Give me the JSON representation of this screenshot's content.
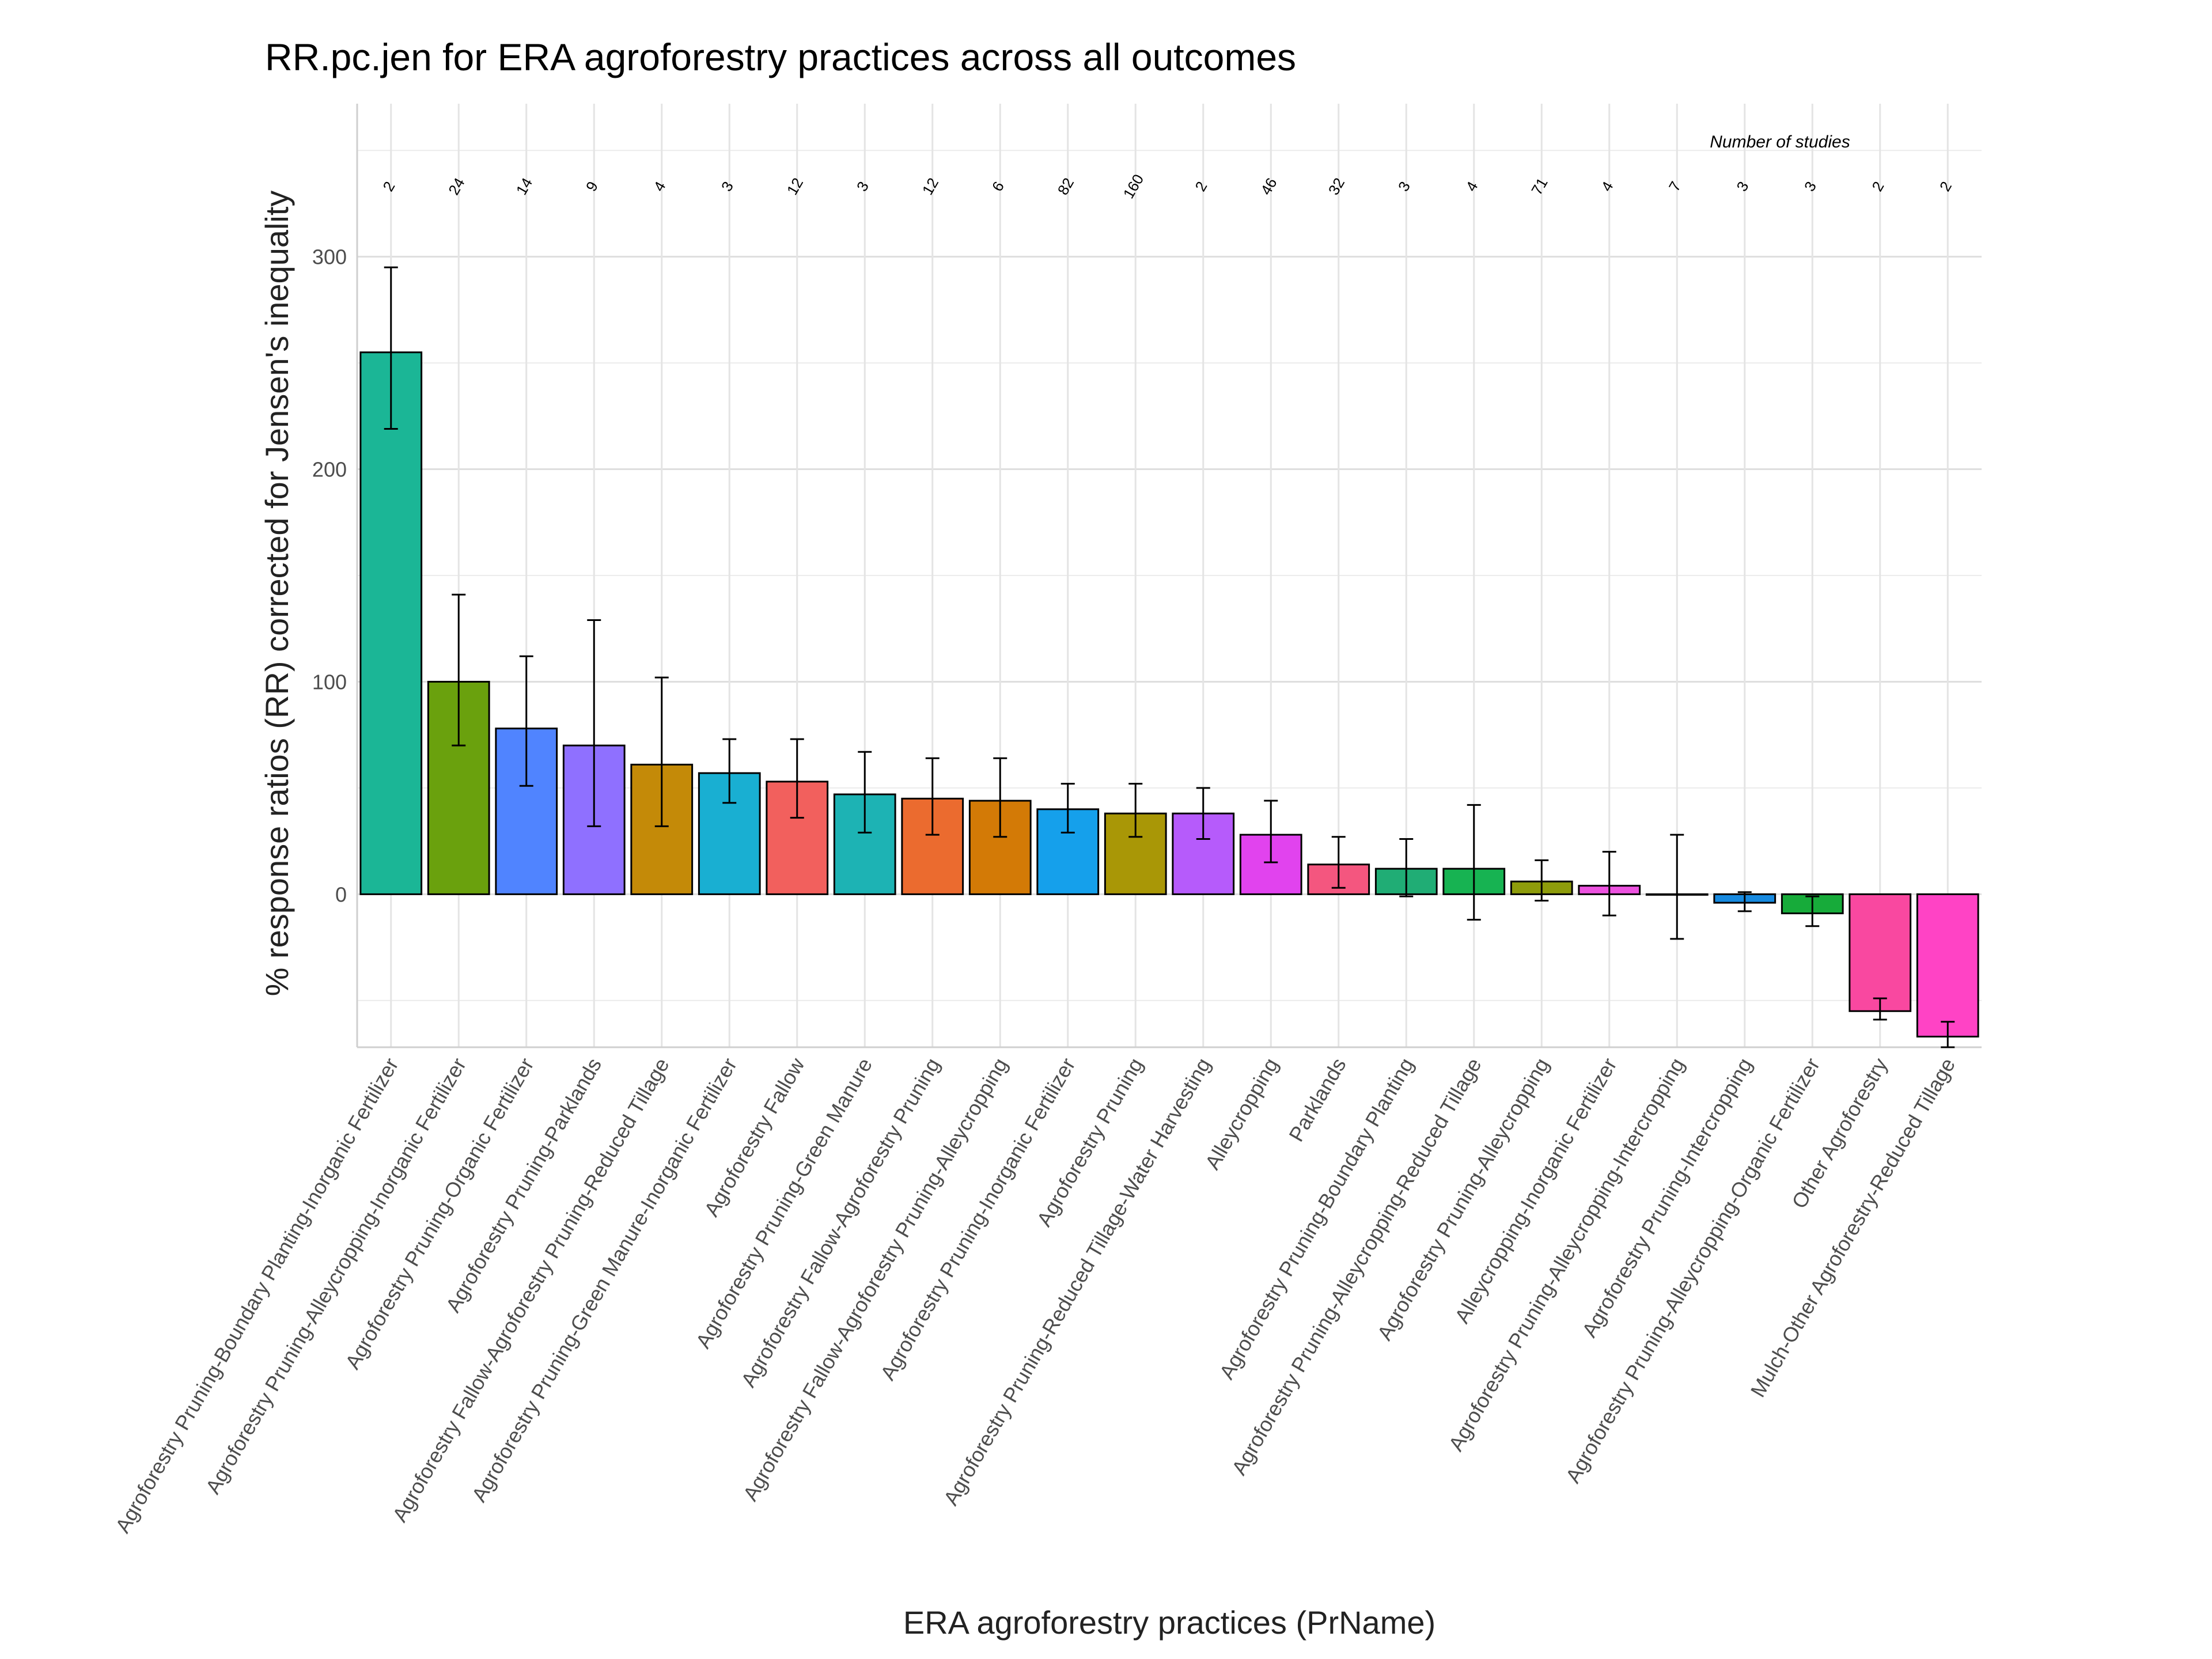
{
  "chart_data": {
    "type": "bar",
    "title": "RR.pc.jen for ERA agroforestry practices across all outcomes",
    "xlabel": "ERA agroforestry practices (PrName)",
    "ylabel": "% response ratios (RR) corrected for Jensen's inequality",
    "ylim": [
      -72,
      372
    ],
    "yticks": [
      0,
      100,
      200,
      300
    ],
    "grid": true,
    "legend": "none",
    "annotation_title": "Number of studies",
    "categories": [
      "Agroforestry Pruning-Boundary Planting-Inorganic Fertilizer",
      "Agroforestry Pruning-Alleycropping-Inorganic Fertilizer",
      "Agroforestry Pruning-Organic Fertilizer",
      "Agroforestry Pruning-Parklands",
      "Agroforestry Fallow-Agroforestry Pruning-Reduced Tillage",
      "Agroforestry Pruning-Green Manure-Inorganic Fertilizer",
      "Agroforestry Fallow",
      "Agroforestry Pruning-Green Manure",
      "Agroforestry Fallow-Agroforestry Pruning",
      "Agroforestry Fallow-Agroforestry Pruning-Alleycropping",
      "Agroforestry Pruning-Inorganic Fertilizer",
      "Agroforestry Pruning",
      "Agroforestry Pruning-Reduced Tillage-Water Harvesting",
      "Alleycropping",
      "Parklands",
      "Agroforestry Pruning-Boundary Planting",
      "Agroforestry Pruning-Alleycropping-Reduced Tillage",
      "Agroforestry Pruning-Alleycropping",
      "Alleycropping-Inorganic Fertilizer",
      "Agroforestry Pruning-Alleycropping-Intercropping",
      "Agroforestry Pruning-Intercropping",
      "Agroforestry Pruning-Alleycropping-Organic Fertilizer",
      "Other Agroforestry",
      "Mulch-Other Agroforestry-Reduced Tillage"
    ],
    "values": [
      255,
      100,
      78,
      70,
      61,
      57,
      53,
      47,
      45,
      44,
      40,
      38,
      38,
      28,
      14,
      12,
      12,
      6,
      4,
      0,
      -4,
      -9,
      -55,
      -67
    ],
    "error_low": [
      219,
      70,
      51,
      32,
      32,
      43,
      36,
      29,
      28,
      27,
      29,
      27,
      26,
      15,
      3,
      -1,
      -12,
      -3,
      -10,
      -21,
      -8,
      -15,
      -59,
      -72
    ],
    "error_high": [
      295,
      141,
      112,
      129,
      102,
      73,
      73,
      67,
      64,
      64,
      52,
      52,
      50,
      44,
      27,
      26,
      42,
      16,
      20,
      28,
      1,
      -1,
      -49,
      -60
    ],
    "study_counts": [
      "2",
      "24",
      "14",
      "9",
      "4",
      "3",
      "12",
      "3",
      "12",
      "6",
      "82",
      "160",
      "2",
      "46",
      "32",
      "3",
      "4",
      "71",
      "4",
      "7",
      "3",
      "3",
      "2",
      "2"
    ],
    "colors": [
      "#1bb696",
      "#6aa10d",
      "#5084ff",
      "#8f70ff",
      "#c48a08",
      "#19afd2",
      "#f2605d",
      "#1db3b4",
      "#eb6b2f",
      "#d37a06",
      "#15a0eb",
      "#a99706",
      "#b65bfb",
      "#e143ee",
      "#f4567f",
      "#20ad75",
      "#17b352",
      "#8e9c0b",
      "#ec52df",
      "#d9e31b",
      "#178ae0",
      "#17ab3a",
      "#f948a0",
      "#ff43c5"
    ]
  }
}
